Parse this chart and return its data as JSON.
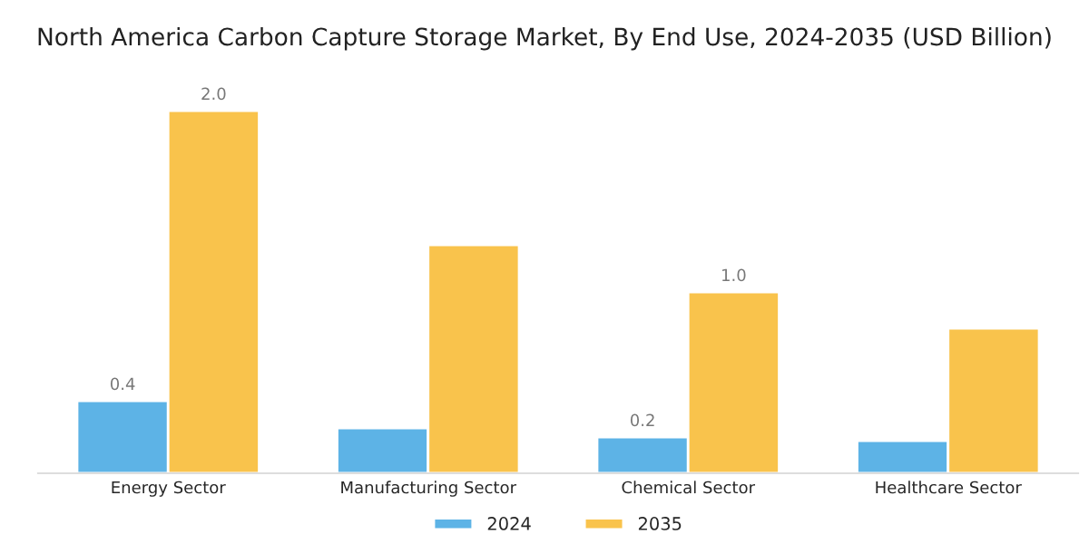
{
  "chart_data": {
    "type": "bar",
    "title": "North America Carbon Capture Storage Market, By End Use, 2024-2035 (USD Billion)",
    "categories": [
      "Energy Sector",
      "Manufacturing Sector",
      "Chemical Sector",
      "Healthcare Sector"
    ],
    "series": [
      {
        "name": "2024",
        "color": "#5db3e6",
        "values": [
          0.4,
          0.25,
          0.2,
          0.18
        ],
        "value_labels": [
          "0.4",
          null,
          "0.2",
          null
        ]
      },
      {
        "name": "2035",
        "color": "#f9c34c",
        "values": [
          2.0,
          1.26,
          1.0,
          0.8
        ],
        "value_labels": [
          "2.0",
          null,
          "1.0",
          null
        ]
      }
    ],
    "legend": "bottom"
  }
}
